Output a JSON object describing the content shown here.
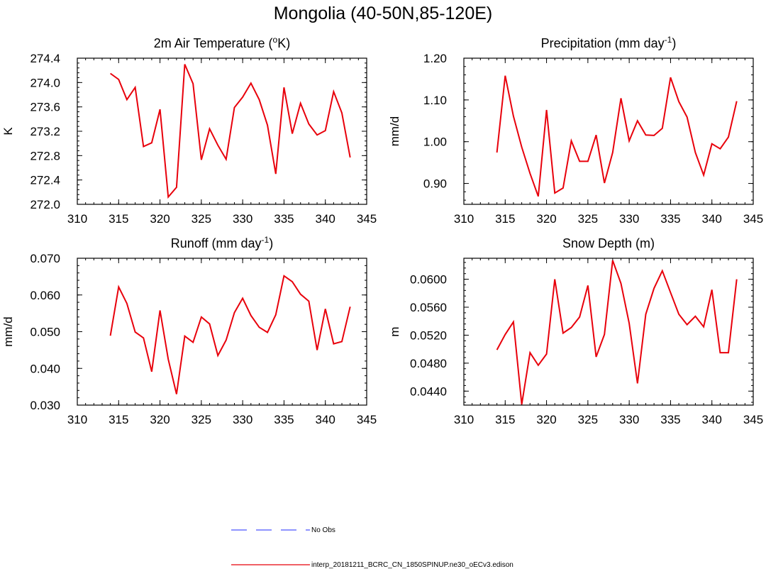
{
  "title": "Mongolia (40-50N,85-120E)",
  "legend": [
    {
      "label": "No Obs",
      "color": "#4b55ff",
      "dash": true
    },
    {
      "label": "interp_20181211_BCRC_CN_1850SPINUP.ne30_oECv3.edison",
      "color": "#e8000b",
      "dash": false
    }
  ],
  "chart_data": [
    {
      "type": "line",
      "title": "2m Air Temperature",
      "title_suffix": "K)",
      "title_sup": "o",
      "ylabel": "K",
      "xlim": [
        310,
        345
      ],
      "ylim": [
        272.0,
        274.4
      ],
      "xticks": [
        "310",
        "315",
        "320",
        "325",
        "330",
        "335",
        "340",
        "345"
      ],
      "yticks": [
        "272.0",
        "272.4",
        "272.8",
        "273.2",
        "273.6",
        "274.0",
        "274.4"
      ],
      "x": [
        314,
        315,
        316,
        317,
        318,
        319,
        320,
        321,
        322,
        323,
        324,
        325,
        326,
        327,
        328,
        329,
        330,
        331,
        332,
        333,
        334,
        335,
        336,
        337,
        338,
        339,
        340,
        341,
        342,
        343
      ],
      "series": [
        {
          "values": [
            274.15,
            274.05,
            273.72,
            273.92,
            272.95,
            273.01,
            273.56,
            272.12,
            272.28,
            274.3,
            273.98,
            272.73,
            273.24,
            272.97,
            272.74,
            273.59,
            273.76,
            273.99,
            273.72,
            273.3,
            272.5,
            273.92,
            273.16,
            273.66,
            273.32,
            273.14,
            273.21,
            273.85,
            273.5,
            272.77
          ]
        }
      ]
    },
    {
      "type": "line",
      "title": "Precipitation (mm day",
      "title_suffix": ")",
      "title_sup": "-1",
      "ylabel": "mm/d",
      "xlim": [
        310,
        345
      ],
      "ylim": [
        0.85,
        1.2
      ],
      "xticks": [
        "310",
        "315",
        "320",
        "325",
        "330",
        "335",
        "340",
        "345"
      ],
      "yticks": [
        "0.90",
        "1.00",
        "1.10",
        "1.20"
      ],
      "x": [
        314,
        315,
        316,
        317,
        318,
        319,
        320,
        321,
        322,
        323,
        324,
        325,
        326,
        327,
        328,
        329,
        330,
        331,
        332,
        333,
        334,
        335,
        336,
        337,
        338,
        339,
        340,
        341,
        342,
        343
      ],
      "series": [
        {
          "values": [
            0.974,
            1.158,
            1.061,
            0.987,
            0.924,
            0.869,
            1.076,
            0.877,
            0.889,
            1.002,
            0.953,
            0.953,
            1.016,
            0.901,
            0.974,
            1.104,
            1.002,
            1.05,
            1.016,
            1.015,
            1.032,
            1.154,
            1.096,
            1.059,
            0.974,
            0.92,
            0.995,
            0.983,
            1.011,
            1.097
          ]
        }
      ]
    },
    {
      "type": "line",
      "title": "Runoff (mm day",
      "title_suffix": ")",
      "title_sup": "-1",
      "ylabel": "mm/d",
      "xlim": [
        310,
        345
      ],
      "ylim": [
        0.03,
        0.07
      ],
      "xticks": [
        "310",
        "315",
        "320",
        "325",
        "330",
        "335",
        "340",
        "345"
      ],
      "yticks": [
        "0.030",
        "0.040",
        "0.050",
        "0.060",
        "0.070"
      ],
      "x": [
        314,
        315,
        316,
        317,
        318,
        319,
        320,
        321,
        322,
        323,
        324,
        325,
        326,
        327,
        328,
        329,
        330,
        331,
        332,
        333,
        334,
        335,
        336,
        337,
        338,
        339,
        340,
        341,
        342,
        343
      ],
      "series": [
        {
          "values": [
            0.0489,
            0.0622,
            0.0577,
            0.0499,
            0.0483,
            0.0391,
            0.0558,
            0.0425,
            0.033,
            0.0488,
            0.0471,
            0.054,
            0.0521,
            0.0435,
            0.0477,
            0.0552,
            0.0591,
            0.0544,
            0.0512,
            0.0498,
            0.0546,
            0.0652,
            0.0636,
            0.0602,
            0.0583,
            0.045,
            0.0562,
            0.0467,
            0.0473,
            0.0568
          ]
        }
      ]
    },
    {
      "type": "line",
      "title": "Snow Depth (m)",
      "title_suffix": "",
      "title_sup": "",
      "ylabel": "m",
      "xlim": [
        310,
        345
      ],
      "ylim": [
        0.042,
        0.063
      ],
      "xticks": [
        "310",
        "315",
        "320",
        "325",
        "330",
        "335",
        "340",
        "345"
      ],
      "yticks": [
        "0.0440",
        "0.0480",
        "0.0520",
        "0.0560",
        "0.0600"
      ],
      "x": [
        314,
        315,
        316,
        317,
        318,
        319,
        320,
        321,
        322,
        323,
        324,
        325,
        326,
        327,
        328,
        329,
        330,
        331,
        332,
        333,
        334,
        335,
        336,
        337,
        338,
        339,
        340,
        341,
        342,
        343
      ],
      "series": [
        {
          "values": [
            0.0499,
            0.0521,
            0.0539,
            0.0421,
            0.0495,
            0.0477,
            0.0493,
            0.06,
            0.0523,
            0.0531,
            0.0546,
            0.0591,
            0.0489,
            0.0521,
            0.0627,
            0.0594,
            0.0537,
            0.0451,
            0.055,
            0.0587,
            0.0612,
            0.0581,
            0.055,
            0.0535,
            0.0547,
            0.0532,
            0.0585,
            0.0495,
            0.0495,
            0.06
          ]
        }
      ]
    }
  ]
}
